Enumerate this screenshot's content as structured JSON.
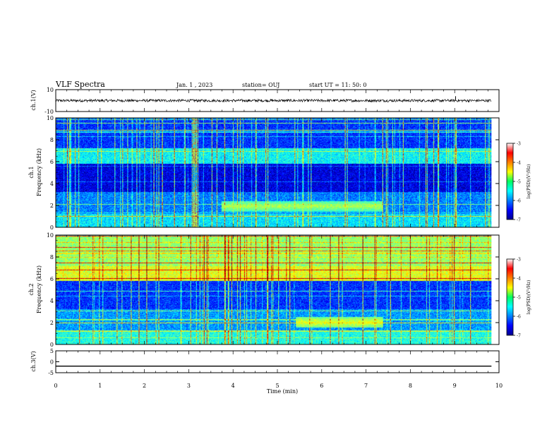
{
  "header": {
    "title": "VLF Spectra",
    "date": "Jan. 1 , 2023",
    "station": "station= OUJ",
    "start": "start UT = 11: 50: 0"
  },
  "chart_data": [
    {
      "type": "line",
      "name": "ch1-waveform",
      "ylabel": "ch.1(V)",
      "ylim": [
        -10,
        10
      ],
      "yticks": [
        "10",
        "-10"
      ],
      "baseline": 0,
      "noise_amplitude": 1.2,
      "spike": {
        "x": 9.02,
        "y": 4
      }
    },
    {
      "type": "heatmap",
      "name": "ch1-spectrogram",
      "ylabel": "ch.1\nFrequency (kHz)",
      "ylim": [
        0,
        10
      ],
      "yticks": [
        "0",
        "2",
        "4",
        "6",
        "8",
        "10"
      ],
      "bands": [
        {
          "f0": 0,
          "f1": 1.2,
          "level": -5.6
        },
        {
          "f0": 1.2,
          "f1": 3.2,
          "level": -6.0
        },
        {
          "f0": 3.2,
          "f1": 5.8,
          "level": -6.6
        },
        {
          "f0": 5.8,
          "f1": 7.1,
          "level": -5.5
        },
        {
          "f0": 7.1,
          "f1": 10,
          "level": -6.3
        }
      ],
      "emission": {
        "x0": 3.8,
        "x1": 7.5,
        "f": 1.9,
        "level": -4.8
      },
      "colorbar": {
        "label": "log(PSD)(V²/Hz)",
        "range": [
          -7,
          -3
        ],
        "ticks": [
          "-3",
          "-4",
          "-5",
          "-6",
          "-7"
        ]
      }
    },
    {
      "type": "heatmap",
      "name": "ch2-spectrogram",
      "ylabel": "ch.2\nFrequency (kHz)",
      "ylim": [
        0,
        10
      ],
      "yticks": [
        "0",
        "2",
        "4",
        "6",
        "8",
        "10"
      ],
      "bands": [
        {
          "f0": 0,
          "f1": 1.2,
          "level": -5.4
        },
        {
          "f0": 1.2,
          "f1": 3.2,
          "level": -5.9
        },
        {
          "f0": 3.2,
          "f1": 5.8,
          "level": -6.3
        },
        {
          "f0": 5.8,
          "f1": 7.2,
          "level": -4.6
        },
        {
          "f0": 7.2,
          "f1": 10,
          "level": -4.9
        }
      ],
      "emission": {
        "x0": 5.5,
        "x1": 7.5,
        "f": 2.0,
        "level": -4.6
      },
      "colorbar": {
        "label": "log(PSD)(V²/Hz)",
        "range": [
          -7,
          -3
        ],
        "ticks": [
          "-3",
          "-4",
          "-5",
          "-6",
          "-7"
        ]
      }
    },
    {
      "type": "line",
      "name": "ch3-waveform",
      "ylabel": "ch.3(V)",
      "ylim": [
        -5,
        5
      ],
      "yticks": [
        "5",
        "0",
        "-5"
      ],
      "baseline": -2
    }
  ],
  "xaxis": {
    "label": "Time (min)",
    "xlim": [
      0,
      10
    ],
    "ticks": [
      "0",
      "1",
      "2",
      "3",
      "4",
      "5",
      "6",
      "7",
      "8",
      "9",
      "10"
    ],
    "data_end": 9.83
  }
}
